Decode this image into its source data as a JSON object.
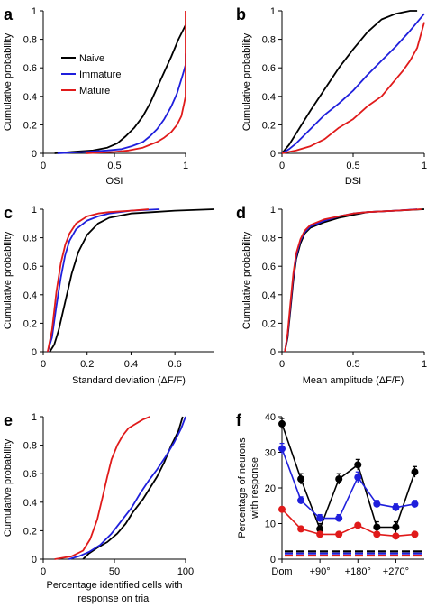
{
  "colors": {
    "naive": "#000000",
    "immature": "#1f1fdc",
    "mature": "#e01a1a"
  },
  "chart_data": [
    {
      "id": "a",
      "type": "line",
      "panel_label": "a",
      "xlabel": "OSI",
      "ylabel": "Cumulative probability",
      "xlim": [
        0,
        1
      ],
      "ylim": [
        0,
        1
      ],
      "xticks": [
        0,
        0.5,
        1
      ],
      "xticklabels": [
        "0",
        "0.5",
        "1"
      ],
      "yticks": [
        0,
        0.2,
        0.4,
        0.6,
        0.8,
        1
      ],
      "yticklabels": [
        "0",
        "0.2",
        "0.4",
        "0.6",
        "0.8",
        "1"
      ],
      "legend": {
        "placement": "top-left",
        "entries": [
          "Naive",
          "Immature",
          "Mature"
        ]
      },
      "series": [
        {
          "name": "Naive",
          "color": "naive",
          "x": [
            0.08,
            0.2,
            0.35,
            0.45,
            0.52,
            0.58,
            0.64,
            0.7,
            0.75,
            0.8,
            0.85,
            0.9,
            0.95,
            1.0
          ],
          "y": [
            0,
            0.01,
            0.02,
            0.04,
            0.07,
            0.12,
            0.18,
            0.26,
            0.35,
            0.46,
            0.57,
            0.68,
            0.8,
            0.9
          ]
        },
        {
          "name": "Immature",
          "color": "immature",
          "x": [
            0.1,
            0.3,
            0.45,
            0.55,
            0.62,
            0.7,
            0.75,
            0.8,
            0.85,
            0.9,
            0.94,
            0.98,
            1.0,
            1.0
          ],
          "y": [
            0,
            0.01,
            0.02,
            0.03,
            0.05,
            0.08,
            0.12,
            0.17,
            0.24,
            0.33,
            0.42,
            0.55,
            0.62,
            0.7
          ]
        },
        {
          "name": "Mature",
          "color": "mature",
          "x": [
            0.3,
            0.5,
            0.6,
            0.7,
            0.75,
            0.8,
            0.85,
            0.9,
            0.94,
            0.97,
            0.99,
            1.0,
            1.0
          ],
          "y": [
            0,
            0.01,
            0.02,
            0.04,
            0.06,
            0.08,
            0.11,
            0.15,
            0.2,
            0.26,
            0.35,
            0.4,
            1.0
          ]
        }
      ]
    },
    {
      "id": "b",
      "type": "line",
      "panel_label": "b",
      "xlabel": "DSI",
      "ylabel": "Cumulative probability",
      "xlim": [
        0,
        1
      ],
      "ylim": [
        0,
        1
      ],
      "xticks": [
        0,
        0.5,
        1
      ],
      "xticklabels": [
        "0",
        "0.5",
        "1"
      ],
      "yticks": [
        0,
        0.2,
        0.4,
        0.6,
        0.8,
        1
      ],
      "yticklabels": [
        "0",
        "0.2",
        "0.4",
        "0.6",
        "0.8",
        "1"
      ],
      "series": [
        {
          "name": "Naive",
          "color": "naive",
          "x": [
            0,
            0.05,
            0.1,
            0.2,
            0.3,
            0.4,
            0.5,
            0.6,
            0.7,
            0.8,
            0.9,
            0.95
          ],
          "y": [
            0,
            0.06,
            0.14,
            0.3,
            0.45,
            0.6,
            0.73,
            0.85,
            0.94,
            0.98,
            1.0,
            1.0
          ]
        },
        {
          "name": "Immature",
          "color": "immature",
          "x": [
            0,
            0.05,
            0.1,
            0.2,
            0.3,
            0.4,
            0.5,
            0.6,
            0.7,
            0.8,
            0.9,
            1.0
          ],
          "y": [
            0,
            0.03,
            0.07,
            0.17,
            0.27,
            0.35,
            0.44,
            0.55,
            0.65,
            0.75,
            0.86,
            0.98
          ]
        },
        {
          "name": "Mature",
          "color": "mature",
          "x": [
            0,
            0.1,
            0.2,
            0.3,
            0.4,
            0.5,
            0.6,
            0.7,
            0.8,
            0.85,
            0.9,
            0.95,
            1.0
          ],
          "y": [
            0,
            0.02,
            0.05,
            0.1,
            0.18,
            0.24,
            0.33,
            0.4,
            0.52,
            0.58,
            0.65,
            0.74,
            0.92
          ]
        }
      ]
    },
    {
      "id": "c",
      "type": "line",
      "panel_label": "c",
      "xlabel": "Standard deviation (ΔF/F)",
      "ylabel": "Cumulative probability",
      "xlim": [
        0,
        0.78
      ],
      "ylim": [
        0,
        1
      ],
      "xticks": [
        0,
        0.2,
        0.4,
        0.6
      ],
      "xticklabels": [
        "0",
        "0.2",
        "0.4",
        "0.6"
      ],
      "yticks": [
        0,
        0.2,
        0.4,
        0.6,
        0.8,
        1
      ],
      "yticklabels": [
        "0",
        "0.2",
        "0.4",
        "0.6",
        "0.8",
        "1"
      ],
      "series": [
        {
          "name": "Naive",
          "color": "naive",
          "x": [
            0.03,
            0.05,
            0.07,
            0.1,
            0.13,
            0.16,
            0.2,
            0.25,
            0.3,
            0.4,
            0.5,
            0.6,
            0.78
          ],
          "y": [
            0,
            0.05,
            0.15,
            0.35,
            0.55,
            0.7,
            0.82,
            0.9,
            0.94,
            0.97,
            0.98,
            0.99,
            1.0
          ]
        },
        {
          "name": "Immature",
          "color": "immature",
          "x": [
            0.02,
            0.04,
            0.06,
            0.08,
            0.1,
            0.12,
            0.15,
            0.2,
            0.25,
            0.3,
            0.4,
            0.53
          ],
          "y": [
            0,
            0.1,
            0.32,
            0.52,
            0.68,
            0.78,
            0.86,
            0.92,
            0.95,
            0.97,
            0.99,
            1.0
          ]
        },
        {
          "name": "Mature",
          "color": "mature",
          "x": [
            0.02,
            0.04,
            0.06,
            0.08,
            0.1,
            0.12,
            0.15,
            0.2,
            0.25,
            0.3,
            0.4,
            0.48
          ],
          "y": [
            0,
            0.15,
            0.42,
            0.62,
            0.75,
            0.83,
            0.9,
            0.95,
            0.97,
            0.98,
            0.99,
            1.0
          ]
        }
      ]
    },
    {
      "id": "d",
      "type": "line",
      "panel_label": "d",
      "xlabel": "Mean amplitude (ΔF/F)",
      "ylabel": "Cumulative probability",
      "xlim": [
        0,
        1
      ],
      "ylim": [
        0,
        1
      ],
      "xticks": [
        0,
        0.5,
        1
      ],
      "xticklabels": [
        "0",
        "0.5",
        "1"
      ],
      "yticks": [
        0,
        0.2,
        0.4,
        0.6,
        0.8,
        1
      ],
      "yticklabels": [
        "0",
        "0.2",
        "0.4",
        "0.6",
        "0.8",
        "1"
      ],
      "series": [
        {
          "name": "Naive",
          "color": "naive",
          "x": [
            0.02,
            0.04,
            0.06,
            0.08,
            0.1,
            0.13,
            0.16,
            0.2,
            0.3,
            0.4,
            0.5,
            0.6,
            0.8,
            1.0
          ],
          "y": [
            0,
            0.1,
            0.3,
            0.5,
            0.65,
            0.76,
            0.83,
            0.87,
            0.91,
            0.94,
            0.96,
            0.98,
            0.99,
            1.0
          ]
        },
        {
          "name": "Immature",
          "color": "immature",
          "x": [
            0.02,
            0.04,
            0.06,
            0.08,
            0.1,
            0.13,
            0.16,
            0.2,
            0.3,
            0.4,
            0.5,
            0.6,
            0.8,
            0.95
          ],
          "y": [
            0,
            0.12,
            0.33,
            0.53,
            0.67,
            0.78,
            0.84,
            0.88,
            0.92,
            0.95,
            0.97,
            0.98,
            0.99,
            1.0
          ]
        },
        {
          "name": "Mature",
          "color": "mature",
          "x": [
            0.02,
            0.04,
            0.06,
            0.08,
            0.1,
            0.13,
            0.16,
            0.2,
            0.3,
            0.4,
            0.5,
            0.6,
            0.8,
            0.98
          ],
          "y": [
            0,
            0.13,
            0.35,
            0.55,
            0.69,
            0.79,
            0.85,
            0.89,
            0.93,
            0.95,
            0.97,
            0.98,
            0.99,
            1.0
          ]
        }
      ]
    },
    {
      "id": "e",
      "type": "line",
      "panel_label": "e",
      "xlabel": "Percentage identified cells with",
      "xlabel2": "response on trial",
      "ylabel": "Cumulative probability",
      "xlim": [
        0,
        100
      ],
      "ylim": [
        0,
        1
      ],
      "xticks": [
        0,
        50,
        100
      ],
      "xticklabels": [
        "0",
        "50",
        "100"
      ],
      "yticks": [
        0,
        0.2,
        0.4,
        0.6,
        0.8,
        1
      ],
      "yticklabels": [
        "0",
        "0.2",
        "0.4",
        "0.6",
        "0.8",
        "1"
      ],
      "series": [
        {
          "name": "Naive",
          "color": "naive",
          "x": [
            28,
            32,
            38,
            45,
            52,
            58,
            63,
            70,
            75,
            80,
            85,
            90,
            95,
            98
          ],
          "y": [
            0,
            0.04,
            0.08,
            0.12,
            0.18,
            0.25,
            0.33,
            0.42,
            0.5,
            0.58,
            0.68,
            0.8,
            0.9,
            1.0
          ]
        },
        {
          "name": "Immature",
          "color": "immature",
          "x": [
            18,
            25,
            32,
            40,
            48,
            55,
            62,
            68,
            74,
            80,
            86,
            92,
            97,
            100
          ],
          "y": [
            0,
            0.02,
            0.05,
            0.1,
            0.18,
            0.27,
            0.36,
            0.46,
            0.55,
            0.63,
            0.72,
            0.82,
            0.92,
            1.0
          ]
        },
        {
          "name": "Mature",
          "color": "mature",
          "x": [
            8,
            20,
            28,
            33,
            38,
            42,
            45,
            48,
            52,
            56,
            60,
            65,
            70,
            75
          ],
          "y": [
            0,
            0.02,
            0.06,
            0.14,
            0.28,
            0.45,
            0.58,
            0.7,
            0.8,
            0.87,
            0.92,
            0.95,
            0.98,
            1.0
          ]
        }
      ]
    },
    {
      "id": "f",
      "type": "line",
      "panel_label": "f",
      "ylabel": "Percentage of neurons",
      "ylabel2": "with response",
      "xlim": [
        0,
        7.5
      ],
      "ylim": [
        0,
        40
      ],
      "xticks": [
        0,
        2,
        4,
        6
      ],
      "xticklabels": [
        "Dom",
        "+90°",
        "+180°",
        "+270°"
      ],
      "yticks": [
        0,
        10,
        20,
        30,
        40
      ],
      "yticklabels": [
        "0",
        "10",
        "20",
        "30",
        "40"
      ],
      "series": [
        {
          "name": "Naive",
          "color": "naive",
          "x": [
            0,
            1,
            2,
            3,
            4,
            5,
            6,
            7
          ],
          "y": [
            38,
            22.5,
            8.5,
            22.5,
            26.5,
            9,
            9,
            24.5
          ],
          "err": [
            1.5,
            1.5,
            1.5,
            1.5,
            1.5,
            1.5,
            1.5,
            1.5
          ]
        },
        {
          "name": "Immature",
          "color": "immature",
          "x": [
            0,
            1,
            2,
            3,
            4,
            5,
            6,
            7
          ],
          "y": [
            31,
            16.5,
            11.5,
            11.5,
            23,
            15.5,
            14.5,
            15.5
          ],
          "err": [
            1.5,
            1,
            1,
            1,
            1.5,
            1,
            1,
            1
          ]
        },
        {
          "name": "Mature",
          "color": "mature",
          "x": [
            0,
            1,
            2,
            3,
            4,
            5,
            6,
            7
          ],
          "y": [
            14,
            8.5,
            7,
            7,
            9.5,
            7,
            6.5,
            7
          ],
          "err": [
            0.5,
            0.5,
            0.5,
            0.5,
            0.5,
            0.5,
            0.5,
            0.5
          ]
        }
      ],
      "baselines": [
        {
          "color": "naive",
          "y": 2.2
        },
        {
          "color": "immature",
          "y": 1.6
        },
        {
          "color": "mature",
          "y": 1.0
        }
      ]
    }
  ]
}
